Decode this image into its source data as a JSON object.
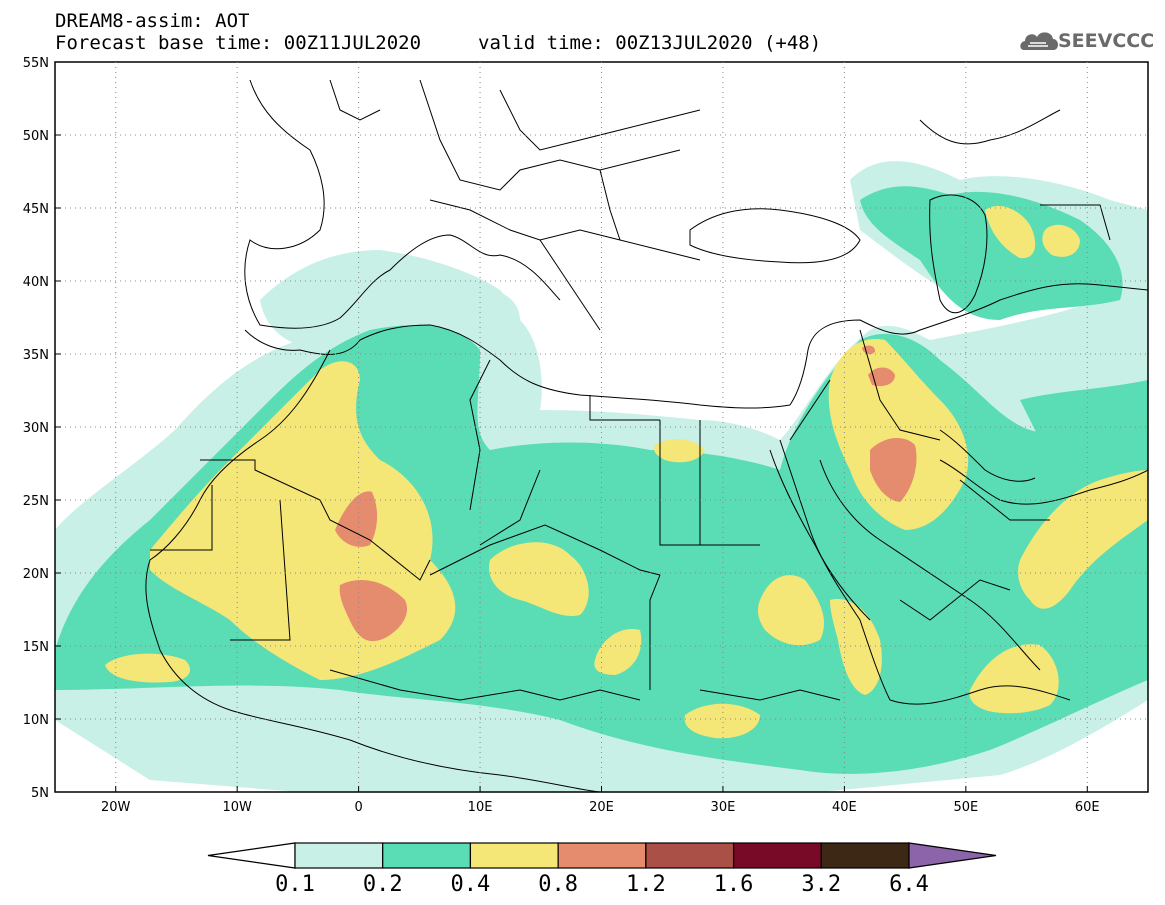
{
  "header": {
    "title_line1": "DREAM8-assim: AOT",
    "title_line2": "Forecast base time: 00Z11JUL2020",
    "valid_time": "valid time: 00Z13JUL2020 (+48)",
    "logo_text": "SEEVCCC"
  },
  "map": {
    "extent": {
      "lon": [
        -25,
        65
      ],
      "lat": [
        5,
        55
      ]
    },
    "lat_ticks": [
      {
        "value": 55,
        "label": "55N"
      },
      {
        "value": 50,
        "label": "50N"
      },
      {
        "value": 45,
        "label": "45N"
      },
      {
        "value": 40,
        "label": "40N"
      },
      {
        "value": 35,
        "label": "35N"
      },
      {
        "value": 30,
        "label": "30N"
      },
      {
        "value": 25,
        "label": "25N"
      },
      {
        "value": 20,
        "label": "20N"
      },
      {
        "value": 15,
        "label": "15N"
      },
      {
        "value": 10,
        "label": "10N"
      },
      {
        "value": 5,
        "label": "5N"
      }
    ],
    "lon_ticks": [
      {
        "value": -20,
        "label": "20W"
      },
      {
        "value": -10,
        "label": "10W"
      },
      {
        "value": 0,
        "label": "0"
      },
      {
        "value": 10,
        "label": "10E"
      },
      {
        "value": 20,
        "label": "20E"
      },
      {
        "value": 30,
        "label": "30E"
      },
      {
        "value": 40,
        "label": "40E"
      },
      {
        "value": 50,
        "label": "50E"
      },
      {
        "value": 60,
        "label": "60E"
      }
    ],
    "grid": true
  },
  "colorbar": {
    "levels": [
      "0.1",
      "0.2",
      "0.4",
      "0.8",
      "1.2",
      "1.6",
      "3.2",
      "6.4"
    ],
    "colors": [
      "#c8f0e6",
      "#5adcb4",
      "#f5e678",
      "#e68c6e",
      "#aa5046",
      "#780a28",
      "#3c2814",
      "#8c64aa"
    ],
    "under_color": "#ffffff"
  }
}
